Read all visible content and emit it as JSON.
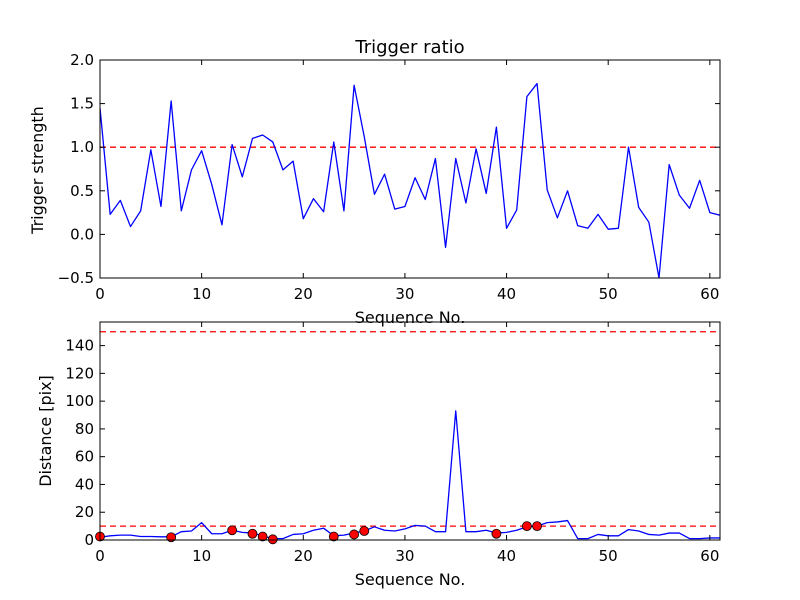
{
  "chart_data": [
    {
      "type": "line",
      "title": "Trigger ratio",
      "xlabel": "Sequence No.",
      "ylabel": "Trigger strength",
      "xlim": [
        0,
        61
      ],
      "ylim": [
        -0.5,
        2.0
      ],
      "xticks": [
        0,
        10,
        20,
        30,
        40,
        50,
        60
      ],
      "xtick_labels": [
        "0",
        "10",
        "20",
        "30",
        "40",
        "50",
        "60"
      ],
      "yticks": [
        -0.5,
        0.0,
        0.5,
        1.0,
        1.5,
        2.0
      ],
      "ytick_labels": [
        "−0.5",
        "0.0",
        "0.5",
        "1.0",
        "1.5",
        "2.0"
      ],
      "series": [
        {
          "name": "trigger strength",
          "color": "#0000ff",
          "x": [
            0,
            1,
            2,
            3,
            4,
            5,
            6,
            7,
            8,
            9,
            10,
            11,
            12,
            13,
            14,
            15,
            16,
            17,
            18,
            19,
            20,
            21,
            22,
            23,
            24,
            25,
            26,
            27,
            28,
            29,
            30,
            31,
            32,
            33,
            34,
            35,
            36,
            37,
            38,
            39,
            40,
            41,
            42,
            43,
            44,
            45,
            46,
            47,
            48,
            49,
            50,
            51,
            52,
            53,
            54,
            55,
            56,
            57,
            58,
            59,
            60,
            61
          ],
          "values": [
            1.45,
            0.23,
            0.39,
            0.09,
            0.27,
            0.97,
            0.32,
            1.53,
            0.27,
            0.74,
            0.96,
            0.57,
            0.11,
            1.03,
            0.66,
            1.1,
            1.14,
            1.06,
            0.74,
            0.84,
            0.18,
            0.41,
            0.26,
            1.06,
            0.27,
            1.71,
            1.12,
            0.46,
            0.69,
            0.29,
            0.32,
            0.65,
            0.4,
            0.87,
            -0.15,
            0.87,
            0.36,
            0.98,
            0.47,
            1.23,
            0.07,
            0.28,
            1.58,
            1.73,
            0.51,
            0.19,
            0.5,
            0.1,
            0.07,
            0.23,
            0.06,
            0.07,
            1.0,
            0.31,
            0.14,
            -0.5,
            0.8,
            0.45,
            0.3,
            0.62,
            0.25,
            0.22
          ]
        }
      ],
      "reference_lines": [
        {
          "y": 1.0,
          "color": "#ff0000",
          "style": "dashed"
        }
      ]
    },
    {
      "type": "line",
      "title": "",
      "xlabel": "Sequence No.",
      "ylabel": "Distance [pix]",
      "xlim": [
        0,
        61
      ],
      "ylim": [
        0,
        157
      ],
      "xticks": [
        0,
        10,
        20,
        30,
        40,
        50,
        60
      ],
      "xtick_labels": [
        "0",
        "10",
        "20",
        "30",
        "40",
        "50",
        "60"
      ],
      "yticks": [
        0,
        20,
        40,
        60,
        80,
        100,
        120,
        140
      ],
      "ytick_labels": [
        "0",
        "20",
        "40",
        "60",
        "80",
        "100",
        "120",
        "140"
      ],
      "series": [
        {
          "name": "distance",
          "color": "#0000ff",
          "x": [
            0,
            1,
            2,
            3,
            4,
            5,
            6,
            7,
            8,
            9,
            10,
            11,
            12,
            13,
            14,
            15,
            16,
            17,
            18,
            19,
            20,
            21,
            22,
            23,
            24,
            25,
            26,
            27,
            28,
            29,
            30,
            31,
            32,
            33,
            34,
            35,
            36,
            37,
            38,
            39,
            40,
            41,
            42,
            43,
            44,
            45,
            46,
            47,
            48,
            49,
            50,
            51,
            52,
            53,
            54,
            55,
            56,
            57,
            58,
            59,
            60,
            61
          ],
          "values": [
            2,
            3,
            3.5,
            3.5,
            2.5,
            2.5,
            2.3,
            2.3,
            6,
            6.5,
            12.5,
            4.5,
            4.5,
            7,
            5.5,
            5,
            3,
            1,
            1,
            4,
            4.5,
            7,
            8.5,
            3,
            3.5,
            5,
            6.5,
            9.5,
            7,
            6.5,
            8,
            10.5,
            10,
            6,
            6,
            93,
            6,
            6,
            7,
            5,
            5.5,
            7,
            9.5,
            10,
            12.5,
            13,
            14,
            1,
            1,
            4,
            3,
            3,
            7.5,
            6.5,
            4,
            3.5,
            5,
            5,
            1,
            1,
            1.5,
            1.5
          ]
        },
        {
          "name": "flagged points",
          "color": "#ff0000",
          "marker": "circle",
          "x": [
            0,
            7,
            13,
            15,
            16,
            17,
            23,
            25,
            26,
            39,
            42,
            43
          ],
          "values": [
            2.5,
            2.0,
            7.0,
            4.5,
            2.5,
            0.5,
            2.5,
            4.0,
            6.5,
            4.5,
            10.0,
            10.0
          ]
        }
      ],
      "reference_lines": [
        {
          "y": 10,
          "color": "#ff0000",
          "style": "dashed"
        },
        {
          "y": 150,
          "color": "#ff0000",
          "style": "dashed"
        }
      ]
    }
  ]
}
